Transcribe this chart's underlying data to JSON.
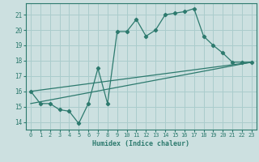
{
  "xlabel": "Humidex (Indice chaleur)",
  "bg_color": "#cce0e0",
  "line_color": "#2d7a6e",
  "grid_color": "#aacccc",
  "xlim": [
    -0.5,
    23.5
  ],
  "ylim": [
    13.5,
    21.75
  ],
  "yticks": [
    14,
    15,
    16,
    17,
    18,
    19,
    20,
    21
  ],
  "xticks": [
    0,
    1,
    2,
    3,
    4,
    5,
    6,
    7,
    8,
    9,
    10,
    11,
    12,
    13,
    14,
    15,
    16,
    17,
    18,
    19,
    20,
    21,
    22,
    23
  ],
  "line1_x": [
    0,
    1,
    2,
    3,
    4,
    5,
    6,
    7,
    8,
    9,
    10,
    11,
    12,
    13,
    14,
    15,
    16,
    17,
    18,
    19,
    20,
    21,
    22,
    23
  ],
  "line1_y": [
    16.0,
    15.2,
    15.2,
    14.8,
    14.7,
    13.9,
    15.2,
    17.5,
    15.2,
    19.9,
    19.9,
    20.7,
    19.6,
    20.0,
    21.0,
    21.1,
    21.2,
    21.4,
    19.6,
    19.0,
    18.5,
    17.9,
    17.9,
    17.9
  ],
  "line2_x": [
    0,
    23
  ],
  "line2_y": [
    16.0,
    17.9
  ],
  "line3_x": [
    0,
    23
  ],
  "line3_y": [
    15.2,
    17.9
  ]
}
